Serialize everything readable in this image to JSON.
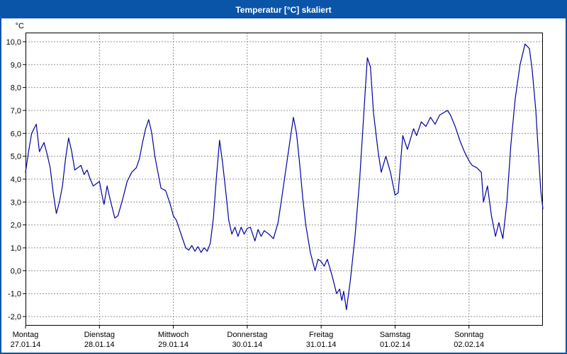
{
  "window": {
    "title": "Temperatur [°C] skaliert"
  },
  "colors": {
    "titlebar": "#0a55a8",
    "title_text": "#ffffff",
    "plot_border": "#000000",
    "grid": "#909090",
    "line": "#0000a0",
    "background": "#ffffff"
  },
  "chart_data": {
    "type": "line",
    "title": "Temperatur [°C] skaliert",
    "ylabel": "°C",
    "xlabel": "",
    "ylim": [
      -2.4,
      10.4
    ],
    "xlim_hours": [
      0,
      168
    ],
    "grid": true,
    "legend": "none",
    "yticks": [
      {
        "value": 10,
        "label": "10,0"
      },
      {
        "value": 9,
        "label": "9,0"
      },
      {
        "value": 8,
        "label": "8,0"
      },
      {
        "value": 7,
        "label": "7,0"
      },
      {
        "value": 6,
        "label": "6,0"
      },
      {
        "value": 5,
        "label": "5,0"
      },
      {
        "value": 4,
        "label": "4,0"
      },
      {
        "value": 3,
        "label": "3,0"
      },
      {
        "value": 2,
        "label": "2,0"
      },
      {
        "value": 1,
        "label": "1,0"
      },
      {
        "value": 0,
        "label": "0,0"
      },
      {
        "value": -1,
        "label": "-1,0"
      },
      {
        "value": -2,
        "label": "-2,0"
      }
    ],
    "xticks": [
      {
        "hour": 0,
        "day": "Montag",
        "date": "27.01.14"
      },
      {
        "hour": 24,
        "day": "Dienstag",
        "date": "28.01.14"
      },
      {
        "hour": 48,
        "day": "Mittwoch",
        "date": "29.01.14"
      },
      {
        "hour": 72,
        "day": "Donnerstag",
        "date": "30.01.14"
      },
      {
        "hour": 96,
        "day": "Freitag",
        "date": "31.01.14"
      },
      {
        "hour": 120,
        "day": "Samstag",
        "date": "01.02.14"
      },
      {
        "hour": 144,
        "day": "Sonntag",
        "date": "02.02.14"
      }
    ],
    "series": [
      {
        "name": "Temperatur",
        "color": "#0000a0",
        "points": [
          [
            0,
            4.3
          ],
          [
            1,
            5.2
          ],
          [
            2,
            6.0
          ],
          [
            3.5,
            6.4
          ],
          [
            4.5,
            5.2
          ],
          [
            6,
            5.6
          ],
          [
            7,
            5.1
          ],
          [
            8,
            4.5
          ],
          [
            9,
            3.4
          ],
          [
            10,
            2.5
          ],
          [
            11,
            3.0
          ],
          [
            12,
            3.7
          ],
          [
            13,
            4.9
          ],
          [
            14,
            5.8
          ],
          [
            15,
            5.2
          ],
          [
            16,
            4.4
          ],
          [
            17,
            4.5
          ],
          [
            18,
            4.6
          ],
          [
            19,
            4.2
          ],
          [
            20,
            4.4
          ],
          [
            21,
            4.0
          ],
          [
            22,
            3.7
          ],
          [
            23,
            3.8
          ],
          [
            24,
            3.9
          ],
          [
            25,
            3.2
          ],
          [
            25.5,
            2.9
          ],
          [
            26.5,
            3.7
          ],
          [
            27.5,
            3.1
          ],
          [
            29,
            2.3
          ],
          [
            30,
            2.4
          ],
          [
            31.5,
            3.1
          ],
          [
            33,
            3.9
          ],
          [
            34.5,
            4.3
          ],
          [
            36,
            4.5
          ],
          [
            37,
            4.9
          ],
          [
            38,
            5.6
          ],
          [
            39,
            6.2
          ],
          [
            40,
            6.6
          ],
          [
            41,
            6.0
          ],
          [
            42,
            5.0
          ],
          [
            43,
            4.3
          ],
          [
            44,
            3.6
          ],
          [
            45.5,
            3.5
          ],
          [
            47,
            2.9
          ],
          [
            48,
            2.4
          ],
          [
            49,
            2.2
          ],
          [
            50.5,
            1.6
          ],
          [
            52,
            1.0
          ],
          [
            53,
            0.9
          ],
          [
            54,
            1.1
          ],
          [
            55,
            0.85
          ],
          [
            56,
            1.05
          ],
          [
            57,
            0.8
          ],
          [
            58,
            1.0
          ],
          [
            59,
            0.85
          ],
          [
            60,
            1.2
          ],
          [
            61,
            2.3
          ],
          [
            62,
            4.1
          ],
          [
            63,
            5.7
          ],
          [
            64,
            4.7
          ],
          [
            65,
            3.5
          ],
          [
            66,
            2.2
          ],
          [
            67,
            1.6
          ],
          [
            68,
            1.9
          ],
          [
            69,
            1.5
          ],
          [
            70,
            1.9
          ],
          [
            71,
            1.6
          ],
          [
            72,
            1.85
          ],
          [
            73,
            1.9
          ],
          [
            74.5,
            1.3
          ],
          [
            75.5,
            1.8
          ],
          [
            76.5,
            1.5
          ],
          [
            77.5,
            1.75
          ],
          [
            79,
            1.6
          ],
          [
            80.5,
            1.4
          ],
          [
            82,
            2.1
          ],
          [
            83,
            3.0
          ],
          [
            84.5,
            4.4
          ],
          [
            86,
            5.8
          ],
          [
            87,
            6.7
          ],
          [
            88,
            6.0
          ],
          [
            89,
            4.7
          ],
          [
            90,
            3.2
          ],
          [
            91,
            2.0
          ],
          [
            92.5,
            0.8
          ],
          [
            94,
            0.0
          ],
          [
            95,
            0.5
          ],
          [
            96,
            0.4
          ],
          [
            97,
            0.2
          ],
          [
            98,
            0.5
          ],
          [
            99.5,
            -0.2
          ],
          [
            101,
            -1.0
          ],
          [
            102,
            -0.8
          ],
          [
            102.7,
            -1.3
          ],
          [
            103.3,
            -0.9
          ],
          [
            104.2,
            -1.7
          ],
          [
            105.5,
            -0.4
          ],
          [
            107,
            1.5
          ],
          [
            108.5,
            4.0
          ],
          [
            110,
            7.2
          ],
          [
            111,
            9.3
          ],
          [
            112,
            8.9
          ],
          [
            113,
            6.9
          ],
          [
            114.5,
            5.2
          ],
          [
            115.5,
            4.3
          ],
          [
            117,
            5.0
          ],
          [
            118.5,
            4.3
          ],
          [
            120,
            3.3
          ],
          [
            121,
            3.4
          ],
          [
            122.5,
            5.9
          ],
          [
            124,
            5.3
          ],
          [
            126,
            6.2
          ],
          [
            127,
            5.9
          ],
          [
            128.5,
            6.5
          ],
          [
            130,
            6.3
          ],
          [
            131.5,
            6.7
          ],
          [
            133,
            6.4
          ],
          [
            134.5,
            6.8
          ],
          [
            137,
            7.0
          ],
          [
            138,
            6.8
          ],
          [
            139.5,
            6.3
          ],
          [
            141,
            5.7
          ],
          [
            142.5,
            5.2
          ],
          [
            144,
            4.8
          ],
          [
            145,
            4.6
          ],
          [
            146.5,
            4.5
          ],
          [
            148,
            4.3
          ],
          [
            148.7,
            3.0
          ],
          [
            150,
            3.7
          ],
          [
            151.3,
            2.4
          ],
          [
            152.6,
            1.5
          ],
          [
            153.7,
            2.1
          ],
          [
            155,
            1.4
          ],
          [
            156.3,
            3.0
          ],
          [
            157.6,
            5.5
          ],
          [
            159,
            7.5
          ],
          [
            160.6,
            9.0
          ],
          [
            162.2,
            9.9
          ],
          [
            163.6,
            9.7
          ],
          [
            164.5,
            8.8
          ],
          [
            165.7,
            7.0
          ],
          [
            166.6,
            5.0
          ],
          [
            167.3,
            3.5
          ],
          [
            168,
            2.7
          ]
        ]
      }
    ]
  }
}
